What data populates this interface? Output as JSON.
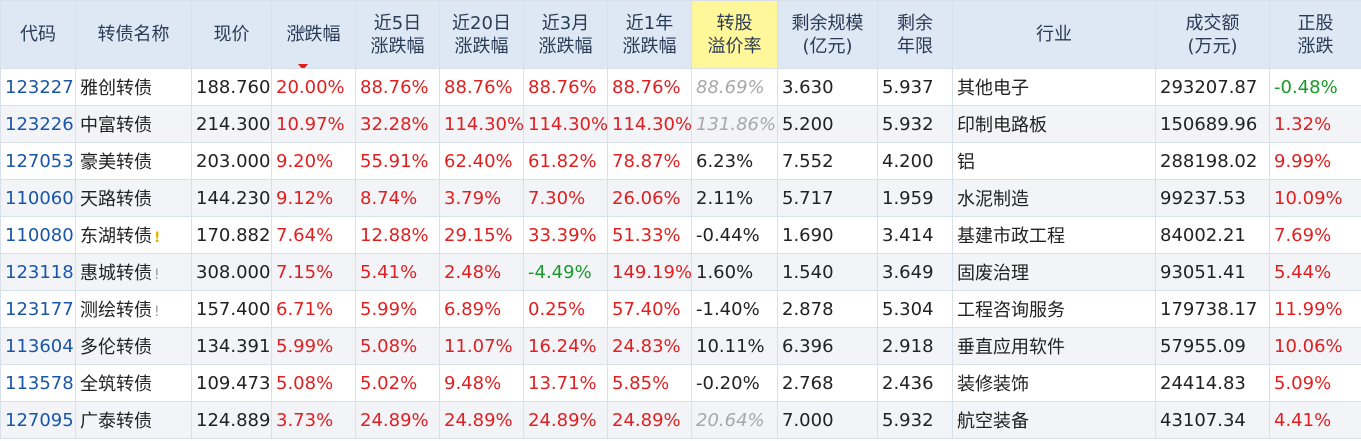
{
  "headers": [
    {
      "label": "代码"
    },
    {
      "label": "转债名称"
    },
    {
      "label": "现价"
    },
    {
      "label": "涨跌幅",
      "sort": "desc"
    },
    {
      "label": "近5日\n涨跌幅"
    },
    {
      "label": "近20日\n涨跌幅"
    },
    {
      "label": "近3月\n涨跌幅"
    },
    {
      "label": "近1年\n涨跌幅"
    },
    {
      "label": "转股\n溢价率",
      "highlight": true
    },
    {
      "label": "剩余规模\n(亿元)"
    },
    {
      "label": "剩余\n年限"
    },
    {
      "label": "行业"
    },
    {
      "label": "成交额\n(万元)"
    },
    {
      "label": "正股\n涨跌"
    }
  ],
  "rows": [
    {
      "code": "123227",
      "name": "雅创转债",
      "flag": "",
      "price": "188.760",
      "chg": "20.00%",
      "chg5": "88.76%",
      "chg20": "88.76%",
      "chg3m": "88.76%",
      "chg1y": "88.76%",
      "premium": "88.69%",
      "premium_style": "gray",
      "scale": "3.630",
      "years": "5.937",
      "industry": "其他电子",
      "volume": "293207.87",
      "stock_chg": "-0.48%"
    },
    {
      "code": "123226",
      "name": "中富转债",
      "flag": "",
      "price": "214.300",
      "chg": "10.97%",
      "chg5": "32.28%",
      "chg20": "114.30%",
      "chg3m": "114.30%",
      "chg1y": "114.30%",
      "premium": "131.86%",
      "premium_style": "gray",
      "scale": "5.200",
      "years": "5.932",
      "industry": "印制电路板",
      "volume": "150689.96",
      "stock_chg": "1.32%"
    },
    {
      "code": "127053",
      "name": "豪美转债",
      "flag": "",
      "price": "203.000",
      "chg": "9.20%",
      "chg5": "55.91%",
      "chg20": "62.40%",
      "chg3m": "61.82%",
      "chg1y": "78.87%",
      "premium": "6.23%",
      "premium_style": "normal",
      "scale": "7.552",
      "years": "4.200",
      "industry": "铝",
      "volume": "288198.02",
      "stock_chg": "9.99%"
    },
    {
      "code": "110060",
      "name": "天路转债",
      "flag": "",
      "price": "144.230",
      "chg": "9.12%",
      "chg5": "8.74%",
      "chg20": "3.79%",
      "chg3m": "7.30%",
      "chg1y": "26.06%",
      "premium": "2.11%",
      "premium_style": "normal",
      "scale": "5.717",
      "years": "1.959",
      "industry": "水泥制造",
      "volume": "99237.53",
      "stock_chg": "10.09%"
    },
    {
      "code": "110080",
      "name": "东湖转债",
      "flag": "!",
      "flag_style": "yellow",
      "price": "170.882",
      "chg": "7.64%",
      "chg5": "12.88%",
      "chg20": "29.15%",
      "chg3m": "33.39%",
      "chg1y": "51.33%",
      "premium": "-0.44%",
      "premium_style": "normal",
      "scale": "1.690",
      "years": "3.414",
      "industry": "基建市政工程",
      "volume": "84002.21",
      "stock_chg": "7.69%"
    },
    {
      "code": "123118",
      "name": "惠城转债",
      "flag": "!",
      "flag_style": "gray",
      "price": "308.000",
      "chg": "7.15%",
      "chg5": "5.41%",
      "chg20": "2.48%",
      "chg3m": "-4.49%",
      "chg1y": "149.19%",
      "premium": "1.60%",
      "premium_style": "normal",
      "scale": "1.540",
      "years": "3.649",
      "industry": "固废治理",
      "volume": "93051.41",
      "stock_chg": "5.44%"
    },
    {
      "code": "123177",
      "name": "测绘转债",
      "flag": "!",
      "flag_style": "gray",
      "price": "157.400",
      "chg": "6.71%",
      "chg5": "5.99%",
      "chg20": "6.89%",
      "chg3m": "0.25%",
      "chg1y": "57.40%",
      "premium": "-1.40%",
      "premium_style": "normal",
      "scale": "2.878",
      "years": "5.304",
      "industry": "工程咨询服务",
      "volume": "179738.17",
      "stock_chg": "11.99%"
    },
    {
      "code": "113604",
      "name": "多伦转债",
      "flag": "",
      "price": "134.391",
      "chg": "5.99%",
      "chg5": "5.08%",
      "chg20": "11.07%",
      "chg3m": "16.24%",
      "chg1y": "24.83%",
      "premium": "10.11%",
      "premium_style": "normal",
      "scale": "6.396",
      "years": "2.918",
      "industry": "垂直应用软件",
      "volume": "57955.09",
      "stock_chg": "10.06%"
    },
    {
      "code": "113578",
      "name": "全筑转债",
      "flag": "",
      "price": "109.473",
      "chg": "5.08%",
      "chg5": "5.02%",
      "chg20": "9.48%",
      "chg3m": "13.71%",
      "chg1y": "5.85%",
      "premium": "-0.20%",
      "premium_style": "normal",
      "scale": "2.768",
      "years": "2.436",
      "industry": "装修装饰",
      "volume": "24414.83",
      "stock_chg": "5.09%"
    },
    {
      "code": "127095",
      "name": "广泰转债",
      "flag": "",
      "price": "124.889",
      "chg": "3.73%",
      "chg5": "24.89%",
      "chg20": "24.89%",
      "chg3m": "24.89%",
      "chg1y": "24.89%",
      "premium": "20.64%",
      "premium_style": "gray",
      "scale": "7.000",
      "years": "5.932",
      "industry": "航空装备",
      "volume": "43107.34",
      "stock_chg": "4.41%"
    }
  ],
  "colors": {
    "up": "#e02020",
    "down": "#1a9a2a",
    "code": "#1a56a8",
    "header_bg": "#dde8f4",
    "highlight_bg": "#fff79a"
  }
}
